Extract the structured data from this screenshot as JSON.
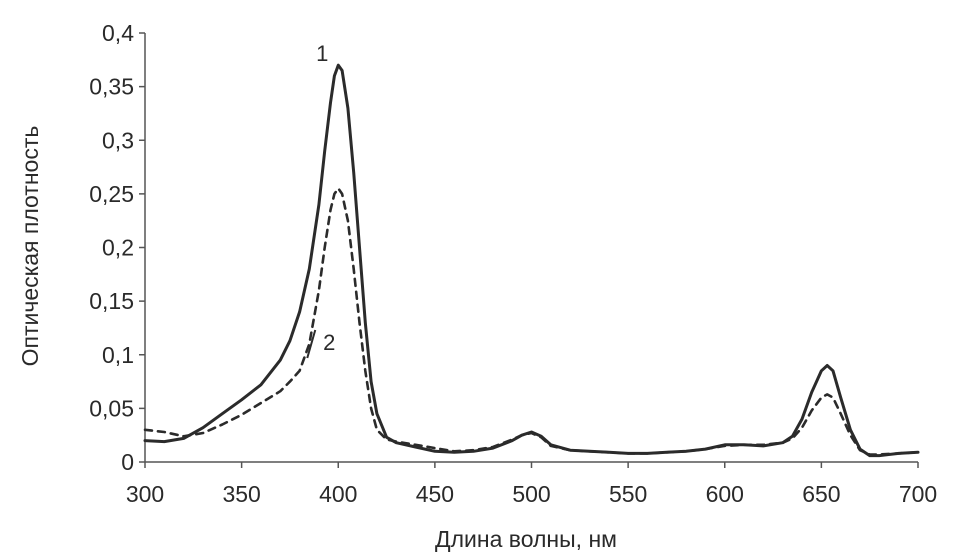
{
  "chart_data": {
    "type": "line",
    "title": "",
    "xlabel": "Длина волны, нм",
    "ylabel": "Оптическая плотность",
    "xlim": [
      300,
      700
    ],
    "ylim": [
      0,
      0.4
    ],
    "x_ticks": [
      300,
      350,
      400,
      450,
      500,
      550,
      600,
      650,
      700
    ],
    "x_tick_labels": [
      "300",
      "350",
      "400",
      "450",
      "500",
      "550",
      "600",
      "650",
      "700"
    ],
    "y_ticks": [
      0,
      0.05,
      0.1,
      0.15,
      0.2,
      0.25,
      0.3,
      0.35,
      0.4
    ],
    "y_tick_labels": [
      "0",
      "0,05",
      "0,1",
      "0,15",
      "0,2",
      "0,25",
      "0,3",
      "0,35",
      "0,4"
    ],
    "grid": false,
    "legend": "none",
    "series": [
      {
        "label": "1",
        "style": "solid",
        "color": "#2b2b2b",
        "x": [
          300,
          310,
          320,
          330,
          340,
          350,
          360,
          370,
          375,
          380,
          385,
          390,
          393,
          396,
          398,
          400,
          402,
          405,
          408,
          411,
          414,
          417,
          420,
          425,
          430,
          440,
          450,
          460,
          470,
          480,
          490,
          495,
          500,
          505,
          510,
          520,
          530,
          540,
          550,
          560,
          570,
          580,
          590,
          600,
          610,
          620,
          630,
          635,
          640,
          645,
          650,
          653,
          656,
          660,
          665,
          670,
          675,
          680,
          690,
          700
        ],
        "y": [
          0.02,
          0.019,
          0.022,
          0.032,
          0.045,
          0.058,
          0.072,
          0.095,
          0.113,
          0.14,
          0.18,
          0.24,
          0.29,
          0.335,
          0.36,
          0.37,
          0.365,
          0.33,
          0.27,
          0.2,
          0.13,
          0.075,
          0.045,
          0.023,
          0.018,
          0.014,
          0.01,
          0.009,
          0.01,
          0.013,
          0.02,
          0.025,
          0.028,
          0.024,
          0.016,
          0.011,
          0.01,
          0.009,
          0.008,
          0.008,
          0.009,
          0.01,
          0.012,
          0.016,
          0.016,
          0.015,
          0.018,
          0.024,
          0.04,
          0.065,
          0.085,
          0.09,
          0.085,
          0.06,
          0.03,
          0.012,
          0.006,
          0.006,
          0.008,
          0.009
        ]
      },
      {
        "label": "2",
        "style": "dashed",
        "color": "#2b2b2b",
        "x": [
          300,
          310,
          320,
          330,
          340,
          350,
          360,
          370,
          375,
          380,
          385,
          390,
          393,
          396,
          398,
          400,
          402,
          405,
          408,
          411,
          414,
          417,
          420,
          425,
          430,
          440,
          450,
          460,
          470,
          480,
          490,
          495,
          500,
          505,
          510,
          520,
          530,
          540,
          550,
          560,
          570,
          580,
          590,
          600,
          610,
          620,
          630,
          635,
          640,
          645,
          650,
          653,
          656,
          660,
          665,
          670,
          675,
          680,
          690,
          700
        ],
        "y": [
          0.03,
          0.028,
          0.024,
          0.027,
          0.035,
          0.044,
          0.055,
          0.066,
          0.075,
          0.085,
          0.11,
          0.16,
          0.2,
          0.235,
          0.25,
          0.255,
          0.25,
          0.225,
          0.18,
          0.13,
          0.085,
          0.05,
          0.03,
          0.021,
          0.019,
          0.016,
          0.013,
          0.01,
          0.011,
          0.014,
          0.021,
          0.025,
          0.027,
          0.023,
          0.015,
          0.011,
          0.01,
          0.009,
          0.008,
          0.008,
          0.009,
          0.01,
          0.012,
          0.015,
          0.016,
          0.016,
          0.018,
          0.022,
          0.032,
          0.048,
          0.06,
          0.063,
          0.06,
          0.045,
          0.025,
          0.011,
          0.007,
          0.007,
          0.008,
          0.009
        ]
      }
    ]
  }
}
